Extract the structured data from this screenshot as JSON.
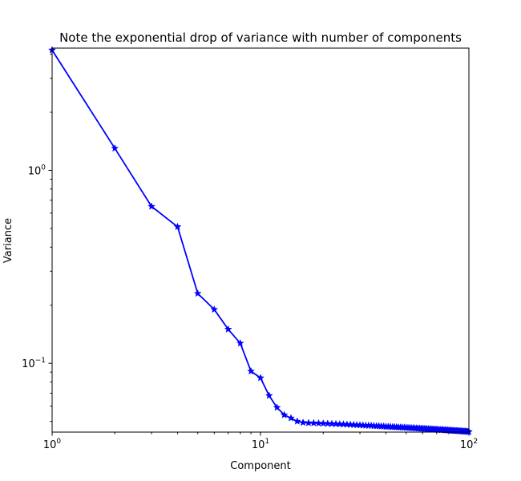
{
  "chart_data": {
    "type": "line",
    "title": "Note the exponential drop of variance with number of components",
    "xlabel": "Component",
    "ylabel": "Variance",
    "xscale": "log",
    "yscale": "log",
    "xlim": [
      1,
      100
    ],
    "ylim": [
      0.044,
      4.3
    ],
    "grid": false,
    "x_ticks": [
      {
        "value": 1,
        "base": "10",
        "exp": "0"
      },
      {
        "value": 10,
        "base": "10",
        "exp": "1"
      },
      {
        "value": 100,
        "base": "10",
        "exp": "2"
      }
    ],
    "y_ticks": [
      {
        "value": 0.1,
        "base": "10",
        "exp": "−1"
      },
      {
        "value": 1,
        "base": "10",
        "exp": "0"
      }
    ],
    "series": [
      {
        "color": "#0000ff",
        "marker": "star",
        "x": [
          1,
          2,
          3,
          4,
          5,
          6,
          7,
          8,
          9,
          10,
          11,
          12,
          13,
          14,
          15,
          16,
          17,
          18,
          19,
          20,
          21,
          22,
          23,
          24,
          25,
          26,
          27,
          28,
          29,
          30,
          31,
          32,
          33,
          34,
          35,
          36,
          37,
          38,
          39,
          40,
          41,
          42,
          43,
          44,
          45,
          46,
          47,
          48,
          49,
          50,
          51,
          52,
          53,
          54,
          55,
          56,
          57,
          58,
          59,
          60,
          61,
          62,
          63,
          64,
          65,
          66,
          67,
          68,
          69,
          70,
          71,
          72,
          73,
          74,
          75,
          76,
          77,
          78,
          79,
          80,
          81,
          82,
          83,
          84,
          85,
          86,
          87,
          88,
          89,
          90,
          91,
          92,
          93,
          94,
          95,
          96,
          97,
          98,
          99,
          100
        ],
        "y": [
          4.2,
          1.3,
          0.65,
          0.51,
          0.23,
          0.19,
          0.15,
          0.127,
          0.091,
          0.084,
          0.068,
          0.059,
          0.054,
          0.052,
          0.05,
          0.0493,
          0.0491,
          0.049,
          0.0489,
          0.0488,
          0.0487,
          0.0486,
          0.0485,
          0.0484,
          0.0483,
          0.0482,
          0.0481,
          0.048,
          0.0479,
          0.0478,
          0.0477,
          0.0476,
          0.0476,
          0.0475,
          0.0474,
          0.0473,
          0.0473,
          0.0472,
          0.0471,
          0.047,
          0.047,
          0.0469,
          0.0468,
          0.0468,
          0.0467,
          0.0466,
          0.0466,
          0.0465,
          0.0465,
          0.0464,
          0.0463,
          0.0463,
          0.0462,
          0.0462,
          0.0461,
          0.0461,
          0.046,
          0.046,
          0.0459,
          0.0459,
          0.0458,
          0.0458,
          0.0457,
          0.0457,
          0.0456,
          0.0456,
          0.0455,
          0.0455,
          0.0454,
          0.0454,
          0.0453,
          0.0453,
          0.0452,
          0.0452,
          0.0452,
          0.0451,
          0.0451,
          0.045,
          0.045,
          0.0449,
          0.0449,
          0.0449,
          0.0448,
          0.0448,
          0.0447,
          0.0447,
          0.0447,
          0.0446,
          0.0446,
          0.0446,
          0.0445,
          0.0445,
          0.0444,
          0.0444,
          0.0444,
          0.0443,
          0.0443,
          0.0443,
          0.0442,
          0.0442
        ]
      }
    ]
  }
}
